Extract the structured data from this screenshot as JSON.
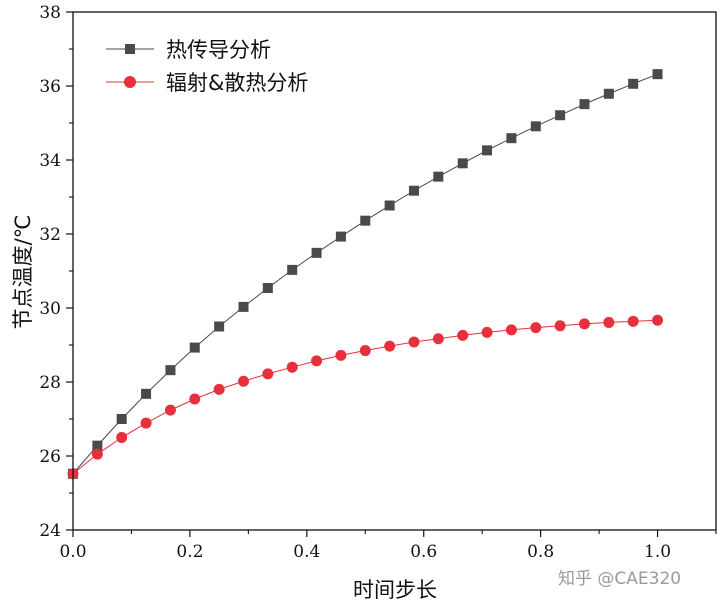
{
  "chart_data": {
    "type": "line",
    "xlabel": "时间步长",
    "ylabel": "节点温度/℃",
    "xlim": [
      0,
      1.1
    ],
    "ylim": [
      24,
      38
    ],
    "x_ticks": [
      0.0,
      0.2,
      0.4,
      0.6,
      0.8,
      1.0
    ],
    "y_ticks": [
      24,
      26,
      28,
      30,
      32,
      34,
      36,
      38
    ],
    "x_tick_labels": [
      "0.0",
      "0.2",
      "0.4",
      "0.6",
      "0.8",
      "1.0"
    ],
    "y_tick_labels": [
      "24",
      "26",
      "28",
      "30",
      "32",
      "34",
      "36",
      "38"
    ],
    "legend_position": "top-left",
    "grid": false,
    "x": [
      0,
      0.0417,
      0.0833,
      0.125,
      0.1667,
      0.2083,
      0.25,
      0.2917,
      0.3333,
      0.375,
      0.4167,
      0.4583,
      0.5,
      0.5417,
      0.5833,
      0.625,
      0.6667,
      0.7083,
      0.75,
      0.7917,
      0.8333,
      0.875,
      0.9167,
      0.9583,
      1.0
    ],
    "series": [
      {
        "name": "热传导分析",
        "color": "#4a4a4a",
        "marker": "square",
        "values": [
          25.52,
          26.28,
          27.0,
          27.68,
          28.32,
          28.93,
          29.5,
          30.03,
          30.54,
          31.03,
          31.49,
          31.93,
          32.36,
          32.77,
          33.17,
          33.55,
          33.91,
          34.26,
          34.59,
          34.91,
          35.21,
          35.51,
          35.79,
          36.06,
          36.32
        ]
      },
      {
        "name": "辐射&散热分析",
        "color": "#e8303c",
        "marker": "circle",
        "values": [
          25.52,
          26.05,
          26.5,
          26.89,
          27.24,
          27.54,
          27.8,
          28.02,
          28.22,
          28.4,
          28.57,
          28.72,
          28.85,
          28.97,
          29.08,
          29.17,
          29.26,
          29.34,
          29.41,
          29.47,
          29.52,
          29.57,
          29.61,
          29.64,
          29.67
        ]
      }
    ]
  },
  "watermark": "知乎 @CAE320"
}
